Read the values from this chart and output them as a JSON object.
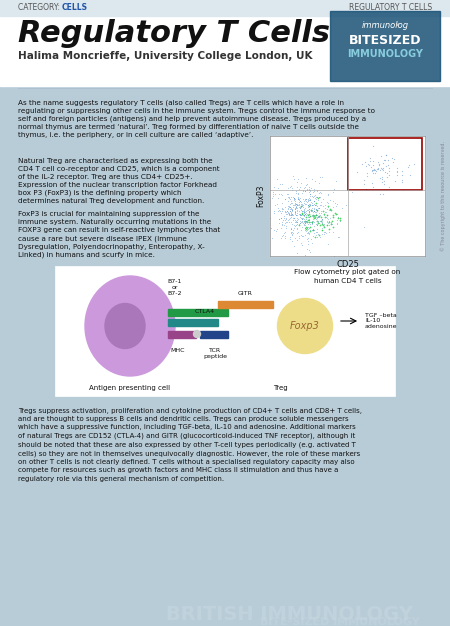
{
  "title": "Regulatory T Cells",
  "subtitle": "Halima Moncrieffe, University College London, UK",
  "category_left": "CATEGORY: CELLS",
  "category_right": "REGULATORY T CELLS",
  "bg_color": "#c8d8e0",
  "header_bg": "#ffffff",
  "body_bg": "#b8ccd8",
  "para1": "As the name suggests regulatory T cells (also called Tregs) are T cells which have a role in regulating or suppressing other cells in the immune system. Tregs control the immune response to self and foreign particles (antigens) and help prevent autoimmune disease. Tregs produced by a normal thymus are termed ‘natural’. Treg formed by differentiation of naive T cells outside the thymus, i.e. the periphery, or in cell culture are called ‘adaptive’.",
  "para2_label": "FoxP3",
  "para2": "Natural Treg are characterised as expressing both the CD4 T cell co-receptor and CD25, which is a component of the IL-2 receptor. Treg are thus CD4+ CD25+. Expression of the nuclear transcription factor Forkhead box P3 (FoxP3) is the defining property which determines natural Treg development and function.",
  "para3": "FoxP3 is crucial for maintaining suppression of the immune system. Naturally occurring mutations in the FOXP3 gene can result in self-reactive lymphocytes that cause a rare but severe disease IPEX (Immune Dysregulation, Polyendocrinopathy, Enteropathy, X-Linked) in humans and scurfy in mice.",
  "flow_cytometry_caption": "CD25\nFlow cytometry plot gated on\nhuman CD4 T cells",
  "para4": "Tregs suppress activation, proliferation and cytokine production of CD4+ T cells and CD8+ T cells, and are thought to suppress B cells and dendritic cells. Tregs can produce soluble messengers which have a suppressive function, including TGF-beta, IL-10 and adenosine. Additional markers of natural Tregs are CD152 (CTLA-4) and GITR (glucocorticoid-induced TNF receptor), although it should be noted that these are also expressed by other T-cell types periodically (e.g. activated T cells) so they are not in themselves unequivocally diagnostic. However, the role of these markers on other T cells is not clearly defined. T cells without a specialised regulatory capacity may also compete for resources such as growth factors and MHC class II stimulation and thus have a regulatory role via this general mechanism of competition.",
  "diagram_labels": {
    "B7": "B7-1\nor\nB7-2",
    "GITR": "GITR",
    "CTLA4": "CTLA4",
    "Foxp3": "Foxp3",
    "TGF": "TGF –beta\nIL-10\nadenosine",
    "MHC": "MHC",
    "TCR": "TCR\npeptide",
    "APC": "Antigen presenting cell",
    "Treg": "Treg"
  },
  "footer_text1": "BRITISH IMMUNOLOGY",
  "footer_text2": "BITE-SIZED IMMUNOLOGY"
}
